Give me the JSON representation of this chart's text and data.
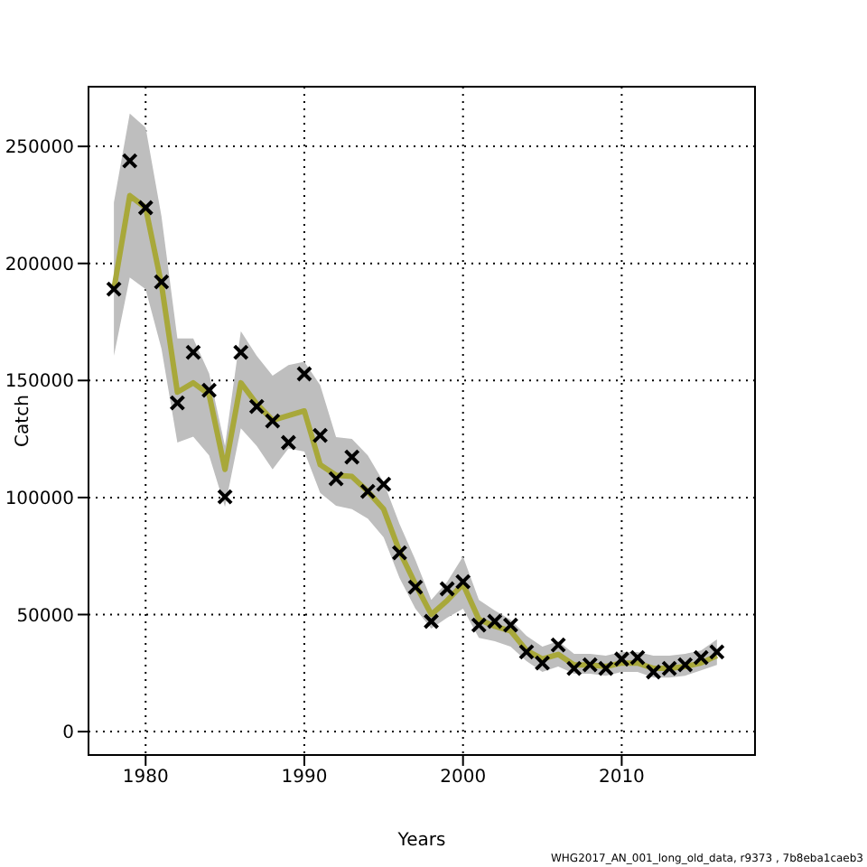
{
  "chart_data": {
    "type": "line",
    "xlabel": "Years",
    "ylabel": "Catch",
    "x": [
      1978,
      1979,
      1980,
      1981,
      1982,
      1983,
      1984,
      1985,
      1986,
      1987,
      1988,
      1989,
      1990,
      1991,
      1992,
      1993,
      1994,
      1995,
      1996,
      1997,
      1998,
      1999,
      2000,
      2001,
      2002,
      2003,
      2004,
      2005,
      2006,
      2007,
      2008,
      2009,
      2010,
      2011,
      2012,
      2013,
      2014,
      2015,
      2016
    ],
    "series": [
      {
        "color": "#a8a83a",
        "marker": "none",
        "values": [
          189000,
          229000,
          223800,
          191000,
          145000,
          149000,
          144000,
          112000,
          149000,
          140000,
          133000,
          135000,
          137000,
          114000,
          109500,
          109000,
          102600,
          95000,
          77000,
          63000,
          50000,
          56000,
          63000,
          48000,
          45000,
          43000,
          34700,
          31000,
          33000,
          28500,
          28500,
          27800,
          29300,
          29300,
          27000,
          27000,
          27800,
          29300,
          32400
        ],
        "lower": [
          160500,
          194000,
          189000,
          163500,
          123500,
          126000,
          118000,
          96000,
          129600,
          122000,
          112000,
          121000,
          119600,
          102000,
          96500,
          95000,
          91000,
          83000,
          65600,
          52500,
          44000,
          48600,
          52500,
          40100,
          38600,
          36300,
          30100,
          25500,
          27800,
          24700,
          24700,
          23900,
          25500,
          25500,
          23100,
          23100,
          23900,
          26200,
          28500
        ],
        "upper": [
          226000,
          264000,
          258000,
          220000,
          168000,
          168000,
          153000,
          122000,
          171000,
          160500,
          152000,
          156600,
          158000,
          148000,
          125800,
          125000,
          118000,
          106500,
          88700,
          73300,
          56300,
          64000,
          74800,
          56300,
          51700,
          47800,
          40900,
          36300,
          38600,
          33200,
          33200,
          32400,
          34000,
          34000,
          32400,
          32400,
          33200,
          34700,
          39400
        ]
      },
      {
        "type": "scatter",
        "color": "#000000",
        "marker": "cross",
        "values": [
          189000,
          243800,
          223800,
          192100,
          140400,
          162000,
          145800,
          100300,
          162000,
          138900,
          132700,
          123500,
          152800,
          126500,
          108000,
          117300,
          102600,
          105700,
          76400,
          61700,
          47100,
          61000,
          64000,
          45500,
          47100,
          45500,
          34000,
          29300,
          37000,
          27000,
          28500,
          27000,
          31000,
          31600,
          25500,
          27000,
          28500,
          31600,
          34000
        ]
      }
    ],
    "xlim": [
      1976.4,
      2018.4
    ],
    "xticks": [
      1980,
      1990,
      2000,
      2010
    ],
    "ylim": [
      -10000,
      275500
    ],
    "yticks": [
      0,
      50000,
      100000,
      150000,
      200000,
      250000
    ],
    "grid": true,
    "legend": false,
    "annotations": [
      "WHG2017_AN_001_long_old_data, r9373 , 7b8eba1caeb3"
    ]
  }
}
